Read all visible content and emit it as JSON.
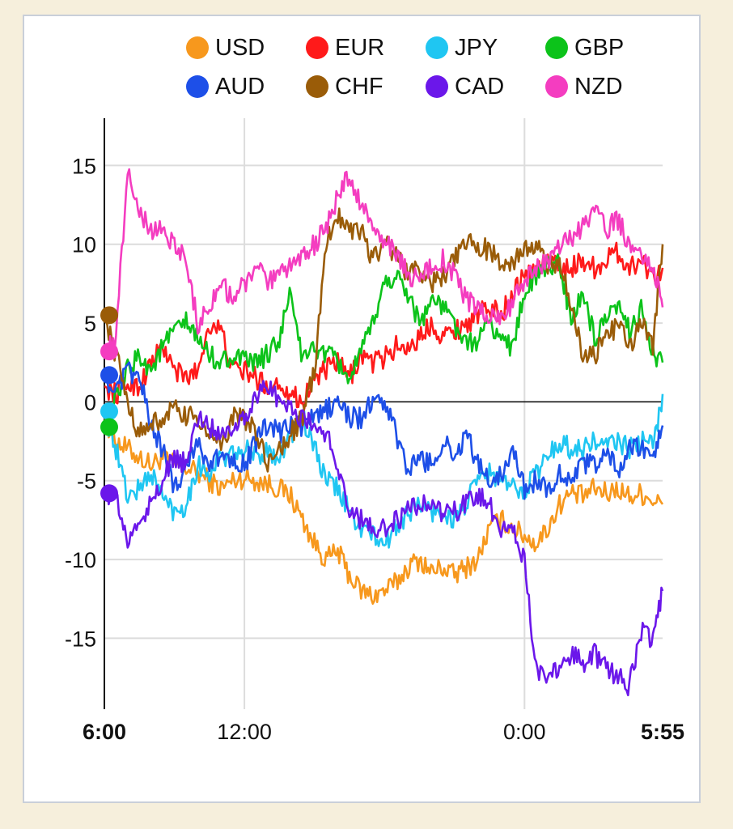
{
  "chart_data": {
    "type": "line",
    "title": "",
    "xlabel": "",
    "ylabel": "",
    "x_range_hours": [
      0,
      23.917
    ],
    "ylim": [
      -19.5,
      18
    ],
    "yticks": [
      15,
      10,
      5,
      0,
      -5,
      -10,
      -15
    ],
    "x_ticks": [
      {
        "hour": 0,
        "label": "6:00",
        "bold": true
      },
      {
        "hour": 6,
        "label": "12:00",
        "bold": false
      },
      {
        "hour": 18,
        "label": "0:00",
        "bold": false
      },
      {
        "hour": 23.917,
        "label": "5:55",
        "bold": true
      }
    ],
    "grid": true,
    "legend_position": "top",
    "sample_hours": [
      0,
      0.5,
      1,
      1.5,
      2,
      2.5,
      3,
      3.5,
      4,
      4.5,
      5,
      5.5,
      6,
      6.5,
      7,
      7.5,
      8,
      8.5,
      9,
      9.5,
      10,
      10.5,
      11,
      11.5,
      12,
      12.5,
      13,
      13.5,
      14,
      14.5,
      15,
      15.5,
      16,
      16.5,
      17,
      17.5,
      18,
      18.5,
      19,
      19.5,
      20,
      20.5,
      21,
      21.5,
      22,
      22.5,
      23,
      23.5,
      23.917
    ],
    "series": [
      {
        "name": "USD",
        "color": "#f7981d",
        "start_dot": false,
        "values": [
          -1,
          -2.5,
          -3,
          -3.5,
          -4,
          -3.5,
          -4,
          -4.2,
          -4.5,
          -5,
          -5.5,
          -5,
          -4.8,
          -5,
          -5.2,
          -5.5,
          -6,
          -7.5,
          -9,
          -10,
          -9.5,
          -11,
          -12,
          -12.3,
          -12,
          -11.5,
          -10.5,
          -10,
          -10.8,
          -10.5,
          -11,
          -10.5,
          -10,
          -8,
          -7.5,
          -8,
          -8.5,
          -9,
          -8,
          -6.5,
          -5.8,
          -6,
          -5.5,
          -5.8,
          -5.5,
          -6,
          -5.8,
          -6.2,
          -6.5
        ]
      },
      {
        "name": "EUR",
        "color": "#ff1a1a",
        "start_dot": false,
        "values": [
          1,
          0.5,
          1.2,
          1,
          2.5,
          3.5,
          2,
          1.5,
          2,
          5,
          4.5,
          2,
          2,
          1.5,
          1,
          1.2,
          0.5,
          0,
          1.5,
          2,
          2.5,
          1.5,
          3,
          2.5,
          2.8,
          3.5,
          3.5,
          4,
          5,
          4.2,
          4.5,
          5,
          5.5,
          6,
          5.5,
          7,
          8,
          8.5,
          9,
          8.5,
          8.5,
          9,
          8.5,
          9,
          9.5,
          8.5,
          9,
          8,
          8.5
        ]
      },
      {
        "name": "JPY",
        "color": "#1fc6f2",
        "start_dot": true,
        "values": [
          -0.6,
          -3,
          -6,
          -5.5,
          -4.5,
          -6,
          -7,
          -6.5,
          -4,
          -4.5,
          -3.5,
          -3.5,
          -3,
          -3.5,
          -3,
          -3.5,
          -2,
          -1,
          -3,
          -5,
          -5.5,
          -7,
          -8,
          -8.5,
          -9,
          -8,
          -7,
          -6.5,
          -7,
          -7,
          -7.5,
          -6.5,
          -5,
          -4.5,
          -5,
          -5.5,
          -5.5,
          -4.5,
          -3.5,
          -2.5,
          -3,
          -3,
          -2.5,
          -2.8,
          -2.5,
          -3,
          -2.5,
          -2.8,
          0.5
        ]
      },
      {
        "name": "GBP",
        "color": "#0cc31a",
        "start_dot": true,
        "values": [
          -1.6,
          0,
          2,
          3,
          2,
          3.5,
          4.5,
          5,
          4,
          3,
          2.5,
          3,
          2.5,
          2.5,
          3,
          4,
          7,
          2.5,
          3.5,
          3,
          2.5,
          1.5,
          3,
          5,
          7.5,
          8,
          7,
          5,
          6.5,
          6,
          5,
          3.5,
          4,
          5,
          4,
          3.5,
          7,
          8,
          8.5,
          9,
          5,
          7,
          4,
          5,
          6,
          4.5,
          6,
          3,
          2.5
        ]
      },
      {
        "name": "AUD",
        "color": "#1d4fe8",
        "start_dot": true,
        "values": [
          1.7,
          0.5,
          2,
          1.5,
          -1.5,
          -3,
          -5.5,
          -4,
          -2.5,
          -4,
          -3.5,
          -3.5,
          -4,
          -2.5,
          -1.5,
          -2,
          -1.5,
          -1.5,
          -1,
          -0.5,
          0,
          -1,
          -1,
          0,
          0,
          -2,
          -4.5,
          -3.5,
          -4,
          -2.5,
          -3.5,
          -2,
          -4,
          -5,
          -4.5,
          -3,
          -5.5,
          -5,
          -5.5,
          -4.5,
          -5,
          -4,
          -4,
          -3,
          -4.5,
          -3,
          -3,
          -3.5,
          -1.5
        ]
      },
      {
        "name": "CHF",
        "color": "#9a5c08",
        "start_dot": true,
        "values": [
          5.5,
          3,
          0,
          -2,
          -1.5,
          -1,
          -0.5,
          -1,
          -1,
          -2,
          -3,
          -1,
          -1,
          -2,
          -4,
          -3,
          -2,
          -1,
          2,
          10,
          12,
          11,
          11,
          9,
          10,
          9.5,
          8,
          8.5,
          7.5,
          8,
          9,
          10,
          10,
          9.5,
          9,
          9,
          9.5,
          10,
          8.5,
          9,
          6,
          3,
          3,
          4,
          5,
          3.5,
          5,
          3.5,
          10
        ]
      },
      {
        "name": "CAD",
        "color": "#6b17ea",
        "start_dot": true,
        "values": [
          -5.8,
          -6,
          -9,
          -7.5,
          -6.5,
          -5,
          -3.5,
          -4,
          -1,
          -1.5,
          -2,
          -1.5,
          -1,
          0.5,
          1,
          0,
          -0.5,
          -1,
          -1.5,
          -2,
          -4,
          -7,
          -7.5,
          -8,
          -8,
          -7.5,
          -7,
          -6.5,
          -6.5,
          -7,
          -7,
          -6.5,
          -6,
          -6.5,
          -8,
          -8,
          -10,
          -17,
          -18,
          -16.5,
          -16,
          -16.5,
          -16,
          -17,
          -17.5,
          -18,
          -14.5,
          -15,
          -12
        ]
      },
      {
        "name": "NZD",
        "color": "#f43dc0",
        "start_dot": true,
        "values": [
          3.2,
          4,
          15,
          12,
          11,
          11,
          10,
          9,
          5,
          6,
          7.5,
          6.5,
          7.5,
          8.5,
          7.5,
          8,
          8.5,
          9.5,
          10,
          11,
          13,
          14.5,
          12.5,
          11,
          10,
          9.5,
          8,
          8,
          8.5,
          9,
          8,
          6.5,
          6,
          5.5,
          5,
          6.5,
          7.5,
          8.5,
          9,
          10,
          10.5,
          11,
          12,
          11,
          11.5,
          10,
          9,
          8.5,
          6
        ]
      }
    ]
  }
}
